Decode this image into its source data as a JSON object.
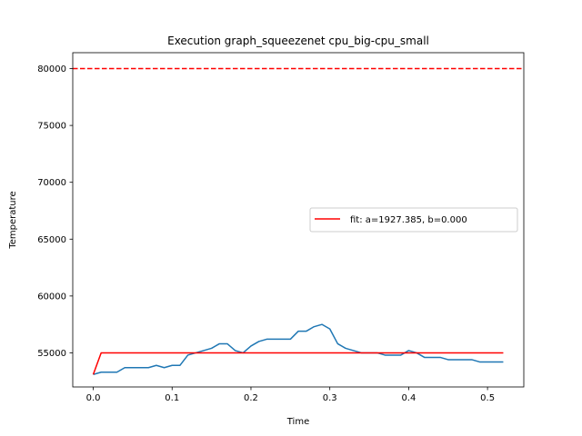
{
  "chart_data": {
    "type": "line",
    "title": "Execution graph_squeezenet cpu_big-cpu_small",
    "xlabel": "Time",
    "ylabel": "Temperature",
    "xlim": [
      -0.026,
      0.546
    ],
    "ylim": [
      52000,
      81400
    ],
    "x_ticks": [
      0.0,
      0.1,
      0.2,
      0.3,
      0.4,
      0.5
    ],
    "x_tick_labels": [
      "0.0",
      "0.1",
      "0.2",
      "0.3",
      "0.4",
      "0.5"
    ],
    "y_ticks": [
      55000,
      60000,
      65000,
      70000,
      75000,
      80000
    ],
    "y_tick_labels": [
      "55000",
      "60000",
      "65000",
      "70000",
      "75000",
      "80000"
    ],
    "threshold": {
      "value": 80000,
      "color": "#ff0000",
      "style": "dashed"
    },
    "legend": {
      "position": "center-right",
      "entries": [
        "fit: a=1927.385, b=0.000"
      ]
    },
    "series": [
      {
        "color": "#1f77b4",
        "x": [
          0.0,
          0.01,
          0.02,
          0.03,
          0.04,
          0.05,
          0.06,
          0.07,
          0.08,
          0.09,
          0.1,
          0.11,
          0.12,
          0.13,
          0.14,
          0.15,
          0.16,
          0.17,
          0.18,
          0.19,
          0.2,
          0.21,
          0.22,
          0.23,
          0.24,
          0.25,
          0.26,
          0.27,
          0.28,
          0.29,
          0.3,
          0.31,
          0.32,
          0.33,
          0.34,
          0.35,
          0.36,
          0.37,
          0.38,
          0.39,
          0.4,
          0.41,
          0.42,
          0.43,
          0.44,
          0.45,
          0.46,
          0.47,
          0.48,
          0.49,
          0.5,
          0.51,
          0.52
        ],
        "y": [
          53100,
          53300,
          53300,
          53300,
          53700,
          53700,
          53700,
          53700,
          53900,
          53700,
          53900,
          53900,
          54800,
          55000,
          55200,
          55400,
          55800,
          55800,
          55200,
          55000,
          55600,
          56000,
          56200,
          56200,
          56200,
          56200,
          56900,
          56900,
          57300,
          57500,
          57100,
          55800,
          55400,
          55200,
          55000,
          55000,
          55000,
          54800,
          54800,
          54800,
          55200,
          55000,
          54600,
          54600,
          54600,
          54400,
          54400,
          54400,
          54400,
          54200,
          54200,
          54200,
          54200
        ]
      },
      {
        "name": "fit: a=1927.385, b=0.000",
        "color": "#ff0000",
        "x": [
          0.0,
          0.01,
          0.52
        ],
        "y": [
          53100,
          55000,
          55000
        ]
      }
    ]
  }
}
